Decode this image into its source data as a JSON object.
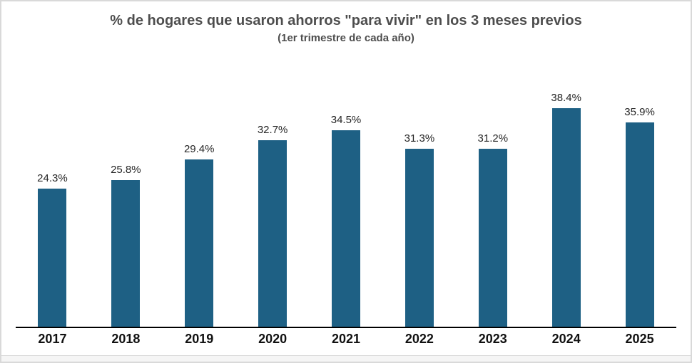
{
  "page": {
    "background": "#ffffff",
    "border_color": "#d9d9d9",
    "axis_color": "#000000",
    "title_color": "#4d4d4d",
    "value_label_color": "#262626",
    "year_label_color": "#111111"
  },
  "chart_data": {
    "type": "bar",
    "title": "% de hogares que usaron ahorros \"para vivir\" en los 3 meses previos",
    "subtitle": "(1er trimestre de cada año)",
    "categories": [
      "2017",
      "2018",
      "2019",
      "2020",
      "2021",
      "2022",
      "2023",
      "2024",
      "2025"
    ],
    "values": [
      24.3,
      25.8,
      29.4,
      32.7,
      34.5,
      31.3,
      31.2,
      38.4,
      35.9
    ],
    "value_labels": [
      "24.3%",
      "25.8%",
      "29.4%",
      "32.7%",
      "34.5%",
      "31.3%",
      "31.2%",
      "38.4%",
      "35.9%"
    ],
    "bar_color": "#1e6084",
    "xlabel": "",
    "ylabel": "",
    "ylim": [
      0,
      45.5
    ],
    "grid": false,
    "legend": null
  }
}
